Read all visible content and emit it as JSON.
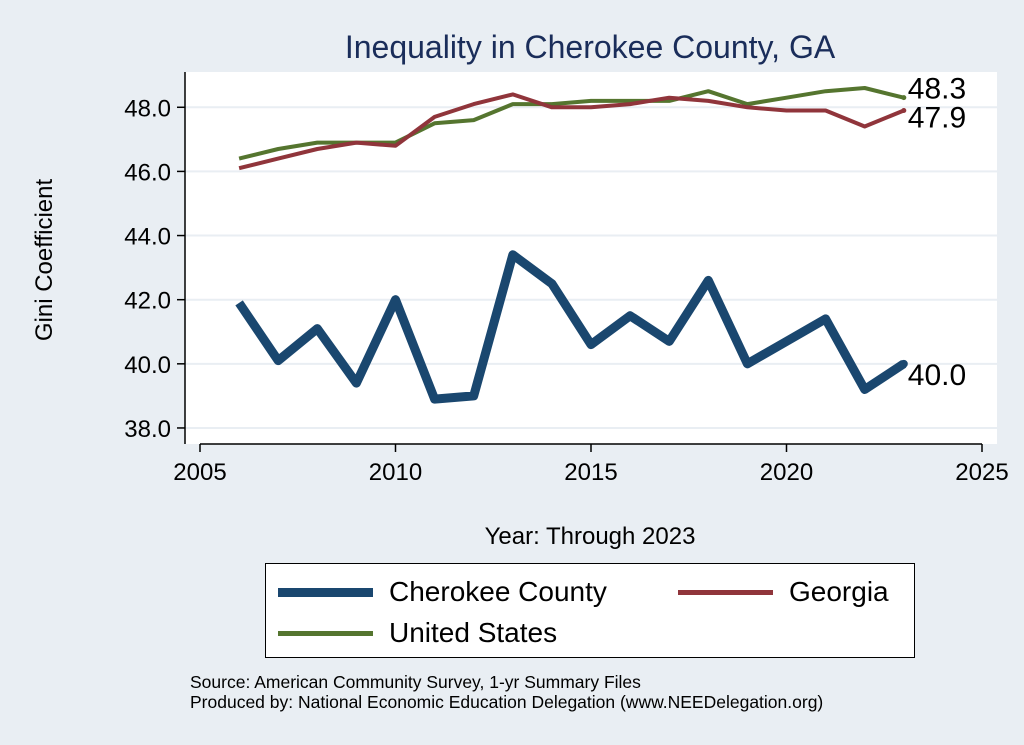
{
  "chart_data": {
    "type": "line",
    "title": "Inequality in Cherokee County, GA",
    "xlabel": "Year: Through 2023",
    "ylabel": "Gini Coefficient",
    "xlim": [
      2005,
      2025
    ],
    "ylim": [
      37.5,
      49.1
    ],
    "xticks": [
      2005,
      2010,
      2015,
      2020,
      2025
    ],
    "yticks": [
      38.0,
      40.0,
      42.0,
      44.0,
      46.0,
      48.0
    ],
    "ytick_labels": [
      "38.0",
      "40.0",
      "42.0",
      "44.0",
      "46.0",
      "48.0"
    ],
    "grid": true,
    "x": [
      2006,
      2007,
      2008,
      2009,
      2010,
      2011,
      2012,
      2013,
      2014,
      2015,
      2016,
      2017,
      2018,
      2019,
      2020,
      2021,
      2022,
      2023
    ],
    "series": [
      {
        "name": "Cherokee County",
        "color": "#1a476f",
        "width": 9,
        "values": [
          41.9,
          40.1,
          41.1,
          39.4,
          42.0,
          38.9,
          39.0,
          43.4,
          42.5,
          40.6,
          41.5,
          40.7,
          42.6,
          40.0,
          40.7,
          41.4,
          39.2,
          40.0
        ],
        "end_label": "40.0"
      },
      {
        "name": "Georgia",
        "color": "#90353b",
        "width": 4,
        "values": [
          46.1,
          46.4,
          46.7,
          46.9,
          46.8,
          47.7,
          48.1,
          48.4,
          48.0,
          48.0,
          48.1,
          48.3,
          48.2,
          48.0,
          47.9,
          47.9,
          47.4,
          47.9
        ],
        "end_label": "47.9"
      },
      {
        "name": "United States",
        "color": "#55752f",
        "width": 4,
        "values": [
          46.4,
          46.7,
          46.9,
          46.9,
          46.9,
          47.5,
          47.6,
          48.1,
          48.1,
          48.2,
          48.2,
          48.2,
          48.5,
          48.1,
          48.3,
          48.5,
          48.6,
          48.3
        ],
        "end_label": "48.3"
      }
    ],
    "legend": [
      "Cherokee County",
      "Georgia",
      "United States"
    ],
    "legend_position": "bottom"
  },
  "source_line1": "Source: American Community Survey, 1-yr Summary Files",
  "source_line2": "Produced by: National Economic Education Delegation (www.NEEDelegation.org)"
}
